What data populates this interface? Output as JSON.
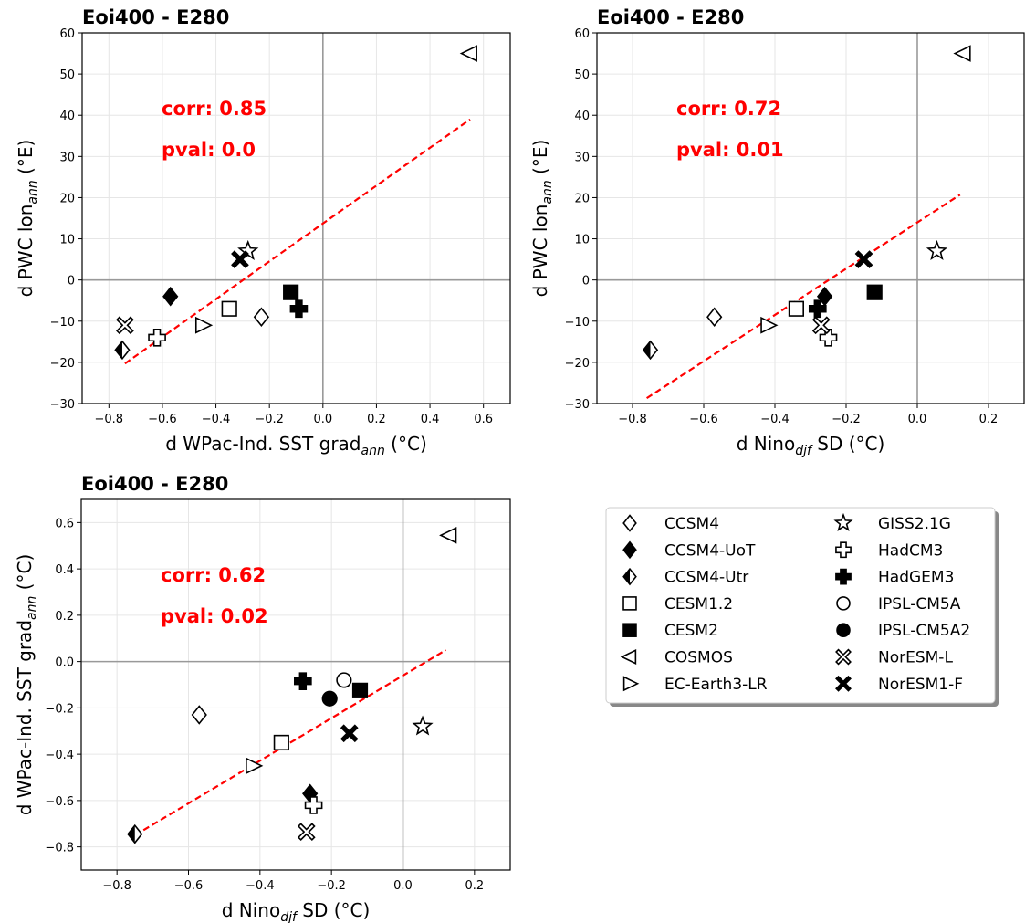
{
  "colors": {
    "fit_line": "#ff0000",
    "stat_text": "#ff0000",
    "grid": "#e6e6e6",
    "zero_line": "#999999"
  },
  "legend": {
    "placement": "right of bottom-left panel",
    "items": [
      {
        "name": "CCSM4",
        "marker": "diamond",
        "fill": "open"
      },
      {
        "name": "CCSM4-UoT",
        "marker": "diamond",
        "fill": "filled"
      },
      {
        "name": "CCSM4-Utr",
        "marker": "diamond",
        "fill": "half"
      },
      {
        "name": "CESM1.2",
        "marker": "square",
        "fill": "open"
      },
      {
        "name": "CESM2",
        "marker": "square",
        "fill": "filled"
      },
      {
        "name": "COSMOS",
        "marker": "triangle-left",
        "fill": "open"
      },
      {
        "name": "EC-Earth3-LR",
        "marker": "triangle-right",
        "fill": "open"
      },
      {
        "name": "GISS2.1G",
        "marker": "star",
        "fill": "open"
      },
      {
        "name": "HadCM3",
        "marker": "plus",
        "fill": "open"
      },
      {
        "name": "HadGEM3",
        "marker": "plus",
        "fill": "filled"
      },
      {
        "name": "IPSL-CM5A",
        "marker": "circle",
        "fill": "open"
      },
      {
        "name": "IPSL-CM5A2",
        "marker": "circle",
        "fill": "filled"
      },
      {
        "name": "NorESM-L",
        "marker": "x",
        "fill": "open"
      },
      {
        "name": "NorESM1-F",
        "marker": "x",
        "fill": "filled"
      }
    ]
  },
  "chart_data": [
    {
      "type": "scatter",
      "title": "Eoi400 - E280",
      "xlabel": "d WPac-Ind. SST grad",
      "xlabel_sub": "ann",
      "xlabel_unit": " (°C)",
      "ylabel": "d PWC lon",
      "ylabel_sub": "ann",
      "ylabel_unit": " (°E)",
      "xlim": [
        -0.9,
        0.7
      ],
      "ylim": [
        -30,
        60
      ],
      "xticks": [
        -0.8,
        -0.6,
        -0.4,
        -0.2,
        0.0,
        0.2,
        0.4,
        0.6
      ],
      "xtick_labels": [
        "−0.8",
        "−0.6",
        "−0.4",
        "−0.2",
        "0.0",
        "0.2",
        "0.4",
        "0.6"
      ],
      "yticks": [
        -30,
        -20,
        -10,
        0,
        10,
        20,
        30,
        40,
        50,
        60
      ],
      "ytick_labels": [
        "−30",
        "−20",
        "−10",
        "0",
        "10",
        "20",
        "30",
        "40",
        "50",
        "60"
      ],
      "grid": true,
      "corr": "corr: 0.85",
      "pval": "pval: 0.0",
      "fit_line": {
        "x": [
          -0.74,
          0.55
        ],
        "y": [
          -20.3,
          39.0
        ]
      },
      "points": [
        {
          "model": "CCSM4",
          "x": -0.23,
          "y": -9
        },
        {
          "model": "CCSM4-UoT",
          "x": -0.57,
          "y": -4
        },
        {
          "model": "CCSM4-Utr",
          "x": -0.75,
          "y": -17
        },
        {
          "model": "CESM1.2",
          "x": -0.35,
          "y": -7
        },
        {
          "model": "CESM2",
          "x": -0.12,
          "y": -3
        },
        {
          "model": "COSMOS",
          "x": 0.55,
          "y": 55
        },
        {
          "model": "EC-Earth3-LR",
          "x": -0.45,
          "y": -11
        },
        {
          "model": "GISS2.1G",
          "x": -0.28,
          "y": 7
        },
        {
          "model": "HadCM3",
          "x": -0.62,
          "y": -14
        },
        {
          "model": "HadGEM3",
          "x": -0.09,
          "y": -7
        },
        {
          "model": "NorESM-L",
          "x": -0.74,
          "y": -11
        },
        {
          "model": "NorESM1-F",
          "x": -0.31,
          "y": 5
        }
      ]
    },
    {
      "type": "scatter",
      "title": "Eoi400 - E280",
      "xlabel": "d Nino",
      "xlabel_sub": "djf",
      "xlabel_unit": " SD (°C)",
      "ylabel": "d PWC lon",
      "ylabel_sub": "ann",
      "ylabel_unit": " (°E)",
      "xlim": [
        -0.9,
        0.3
      ],
      "ylim": [
        -30,
        60
      ],
      "xticks": [
        -0.8,
        -0.6,
        -0.4,
        -0.2,
        0.0,
        0.2
      ],
      "xtick_labels": [
        "−0.8",
        "−0.6",
        "−0.4",
        "−0.2",
        "0.0",
        "0.2"
      ],
      "yticks": [
        -30,
        -20,
        -10,
        0,
        10,
        20,
        30,
        40,
        50,
        60
      ],
      "ytick_labels": [
        "−30",
        "−20",
        "−10",
        "0",
        "10",
        "20",
        "30",
        "40",
        "50",
        "60"
      ],
      "grid": true,
      "corr": "corr: 0.72",
      "pval": "pval: 0.01",
      "fit_line": {
        "x": [
          -0.76,
          0.12
        ],
        "y": [
          -28.7,
          20.7
        ]
      },
      "points": [
        {
          "model": "CCSM4",
          "x": -0.57,
          "y": -9
        },
        {
          "model": "CCSM4-UoT",
          "x": -0.26,
          "y": -4
        },
        {
          "model": "CCSM4-Utr",
          "x": -0.75,
          "y": -17
        },
        {
          "model": "CESM1.2",
          "x": -0.34,
          "y": -7
        },
        {
          "model": "CESM2",
          "x": -0.12,
          "y": -3
        },
        {
          "model": "COSMOS",
          "x": 0.13,
          "y": 55
        },
        {
          "model": "EC-Earth3-LR",
          "x": -0.42,
          "y": -11
        },
        {
          "model": "GISS2.1G",
          "x": 0.055,
          "y": 7
        },
        {
          "model": "HadCM3",
          "x": -0.25,
          "y": -14
        },
        {
          "model": "HadGEM3",
          "x": -0.28,
          "y": -7
        },
        {
          "model": "NorESM-L",
          "x": -0.27,
          "y": -11
        },
        {
          "model": "NorESM1-F",
          "x": -0.15,
          "y": 5
        }
      ]
    },
    {
      "type": "scatter",
      "title": "Eoi400 - E280",
      "xlabel": "d Nino",
      "xlabel_sub": "djf",
      "xlabel_unit": " SD (°C)",
      "ylabel": "d WPac-Ind. SST grad",
      "ylabel_sub": "ann",
      "ylabel_unit": " (°C)",
      "xlim": [
        -0.9,
        0.3
      ],
      "ylim": [
        -0.9,
        0.7
      ],
      "xticks": [
        -0.8,
        -0.6,
        -0.4,
        -0.2,
        0.0,
        0.2
      ],
      "xtick_labels": [
        "−0.8",
        "−0.6",
        "−0.4",
        "−0.2",
        "0.0",
        "0.2"
      ],
      "yticks": [
        -0.8,
        -0.6,
        -0.4,
        -0.2,
        0.0,
        0.2,
        0.4,
        0.6
      ],
      "ytick_labels": [
        "−0.8",
        "−0.6",
        "−0.4",
        "−0.2",
        "0.0",
        "0.2",
        "0.4",
        "0.6"
      ],
      "grid": true,
      "corr": "corr: 0.62",
      "pval": "pval: 0.02",
      "fit_line": {
        "x": [
          -0.75,
          0.12
        ],
        "y": [
          -0.75,
          0.05
        ]
      },
      "points": [
        {
          "model": "CCSM4",
          "x": -0.57,
          "y": -0.23
        },
        {
          "model": "CCSM4-UoT",
          "x": -0.26,
          "y": -0.57
        },
        {
          "model": "CCSM4-Utr",
          "x": -0.75,
          "y": -0.745
        },
        {
          "model": "CESM1.2",
          "x": -0.34,
          "y": -0.35
        },
        {
          "model": "CESM2",
          "x": -0.12,
          "y": -0.125
        },
        {
          "model": "COSMOS",
          "x": 0.13,
          "y": 0.545
        },
        {
          "model": "EC-Earth3-LR",
          "x": -0.42,
          "y": -0.45
        },
        {
          "model": "GISS2.1G",
          "x": 0.055,
          "y": -0.28
        },
        {
          "model": "HadCM3",
          "x": -0.25,
          "y": -0.62
        },
        {
          "model": "HadGEM3",
          "x": -0.28,
          "y": -0.085
        },
        {
          "model": "IPSL-CM5A",
          "x": -0.165,
          "y": -0.08
        },
        {
          "model": "IPSL-CM5A2",
          "x": -0.205,
          "y": -0.16
        },
        {
          "model": "NorESM-L",
          "x": -0.27,
          "y": -0.735
        },
        {
          "model": "NorESM1-F",
          "x": -0.15,
          "y": -0.31
        }
      ]
    }
  ]
}
